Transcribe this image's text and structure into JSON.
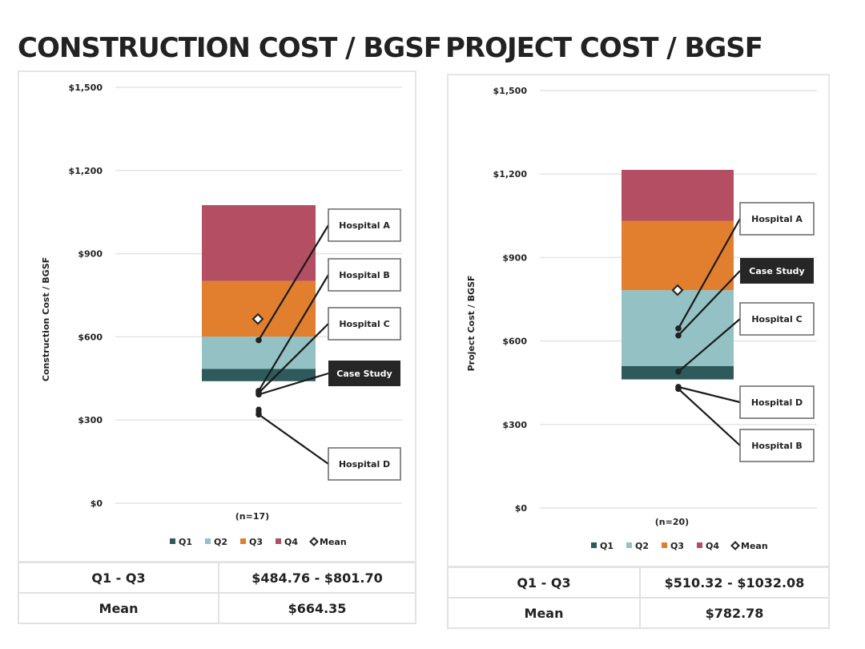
{
  "page": {
    "left_title": "CONSTRUCTION COST / BGSF",
    "right_title": "PROJECT COST / BGSF"
  },
  "chart_data": [
    {
      "type": "boxplot",
      "title": "CONSTRUCTION COST / BGSF",
      "ylabel": "Construction Cost / BGSF",
      "ylim": [
        0,
        1500
      ],
      "yticks": [
        0,
        300,
        600,
        900,
        1200,
        1500
      ],
      "ytick_labels": [
        "$0",
        "$300",
        "$600",
        "$900",
        "$1,200",
        "$1,500"
      ],
      "grid": true,
      "n_label": "(n=17)",
      "legend_position": "bottom",
      "legend": [
        "Q1",
        "Q2",
        "Q3",
        "Q4",
        "Mean"
      ],
      "colors": {
        "Q1": "#2e5a5c",
        "Q2": "#93c1c4",
        "Q3": "#e17f2f",
        "Q4": "#b34e63",
        "Mean": "#222222",
        "highlight": "#262626"
      },
      "stack_boundaries": [
        440,
        484.76,
        601,
        801.7,
        1075
      ],
      "mean": 664.35,
      "points": [
        {
          "label": "Hospital A",
          "value": 588,
          "highlight": false
        },
        {
          "label": "Hospital B",
          "value": 405,
          "highlight": false
        },
        {
          "label": "Hospital C",
          "value": 398,
          "highlight": false
        },
        {
          "label": "Case Study",
          "value": 392,
          "highlight": true
        },
        {
          "label": "Hospital D",
          "value": 320,
          "highlight": false
        }
      ],
      "unlabeled_points": [
        338,
        330
      ],
      "stats": {
        "q_label": "Q1 - Q3",
        "q_value": "$484.76 - $801.70",
        "mean_label": "Mean",
        "mean_value": "$664.35"
      }
    },
    {
      "type": "boxplot",
      "title": "PROJECT COST / BGSF",
      "ylabel": "Project Cost / BGSF",
      "ylim": [
        0,
        1500
      ],
      "yticks": [
        0,
        300,
        600,
        900,
        1200,
        1500
      ],
      "ytick_labels": [
        "$0",
        "$300",
        "$600",
        "$900",
        "$1,200",
        "$1,500"
      ],
      "grid": true,
      "n_label": "(n=20)",
      "legend_position": "bottom",
      "legend": [
        "Q1",
        "Q2",
        "Q3",
        "Q4",
        "Mean"
      ],
      "colors": {
        "Q1": "#2e5a5c",
        "Q2": "#93c1c4",
        "Q3": "#e17f2f",
        "Q4": "#b34e63",
        "Mean": "#222222",
        "highlight": "#262626"
      },
      "stack_boundaries": [
        462,
        510.32,
        782.78,
        1032.08,
        1215
      ],
      "mean": 782.78,
      "points": [
        {
          "label": "Hospital A",
          "value": 645,
          "highlight": false
        },
        {
          "label": "Case Study",
          "value": 620,
          "highlight": true
        },
        {
          "label": "Hospital C",
          "value": 490,
          "highlight": false
        },
        {
          "label": "Hospital D",
          "value": 435,
          "highlight": false
        },
        {
          "label": "Hospital B",
          "value": 428,
          "highlight": false
        }
      ],
      "unlabeled_points": [],
      "stats": {
        "q_label": "Q1 - Q3",
        "q_value": "$510.32 - $1032.08",
        "mean_label": "Mean",
        "mean_value": "$782.78"
      }
    }
  ]
}
